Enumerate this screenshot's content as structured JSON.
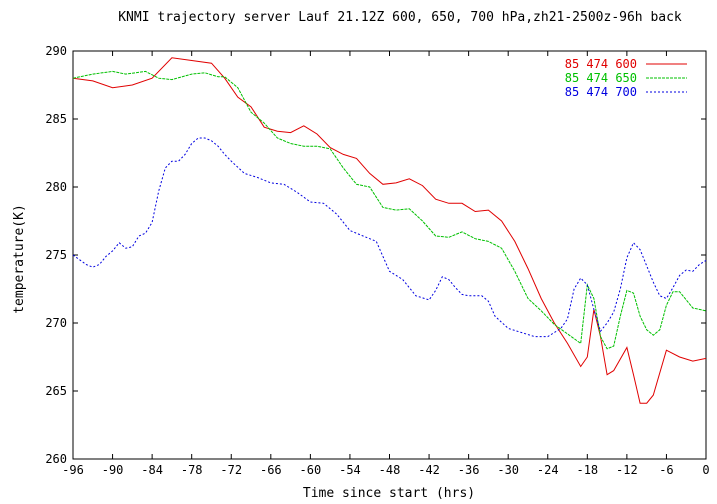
{
  "chart_data": {
    "type": "line",
    "title": "KNMI trajectory server Lauf 21.12Z 600, 650, 700 hPa,zh21-2500z-96h back",
    "xlabel": "Time since start (hrs)",
    "ylabel": "temperature(K)",
    "xlim": [
      -96,
      0
    ],
    "ylim": [
      260,
      290
    ],
    "xticks": [
      -96,
      -90,
      -84,
      -78,
      -72,
      -66,
      -60,
      -54,
      -48,
      -42,
      -36,
      -30,
      -24,
      -18,
      -12,
      -6,
      0
    ],
    "yticks": [
      260,
      265,
      270,
      275,
      280,
      285,
      290
    ],
    "grid": false,
    "legend_position": "top-right",
    "series": [
      {
        "name": "85 474 600",
        "color": "#e00000",
        "dash": "solid",
        "x": [
          -96,
          -93,
          -90,
          -87,
          -84,
          -81,
          -78,
          -75,
          -73,
          -71,
          -69,
          -67,
          -65,
          -63,
          -61,
          -59,
          -57,
          -55,
          -53,
          -51,
          -49,
          -47,
          -45,
          -43,
          -41,
          -39,
          -37,
          -35,
          -33,
          -31,
          -29,
          -27,
          -25,
          -23,
          -21,
          -19,
          -18,
          -17,
          -16,
          -15,
          -14,
          -12,
          -11,
          -10,
          -9,
          -8,
          -6,
          -4,
          -2,
          0
        ],
        "values": [
          288.0,
          287.8,
          287.3,
          287.5,
          288.0,
          289.5,
          289.3,
          289.1,
          288.0,
          286.6,
          285.9,
          284.4,
          284.1,
          284.0,
          284.5,
          283.9,
          282.9,
          282.4,
          282.1,
          281.0,
          280.2,
          280.3,
          280.6,
          280.1,
          279.1,
          278.8,
          278.8,
          278.2,
          278.3,
          277.5,
          276.0,
          274.0,
          271.8,
          270.0,
          268.5,
          266.8,
          267.5,
          271.0,
          269.0,
          266.2,
          266.5,
          268.2,
          266.2,
          264.1,
          264.1,
          264.7,
          268.0,
          267.5,
          267.2,
          267.4
        ]
      },
      {
        "name": "85 474 650",
        "color": "#00c000",
        "dash": "dashed",
        "x": [
          -96,
          -93,
          -90,
          -88,
          -85,
          -83,
          -81,
          -78,
          -76,
          -74,
          -73,
          -71,
          -69,
          -67,
          -65,
          -63,
          -61,
          -59,
          -57,
          -55,
          -53,
          -51,
          -49,
          -47,
          -45,
          -43,
          -41,
          -39,
          -37,
          -35,
          -33,
          -31,
          -29,
          -27,
          -25,
          -23,
          -21,
          -19,
          -18,
          -17,
          -16,
          -15,
          -14,
          -13,
          -12,
          -11,
          -10,
          -9,
          -8,
          -7,
          -6,
          -5,
          -4,
          -2,
          0
        ],
        "values": [
          288.0,
          288.3,
          288.5,
          288.3,
          288.5,
          288.0,
          287.9,
          288.3,
          288.4,
          288.1,
          288.1,
          287.3,
          285.5,
          284.7,
          283.6,
          283.2,
          283.0,
          283.0,
          282.8,
          281.4,
          280.2,
          280.0,
          278.5,
          278.3,
          278.4,
          277.5,
          276.4,
          276.3,
          276.7,
          276.2,
          276.0,
          275.5,
          273.8,
          271.8,
          270.9,
          269.9,
          269.2,
          268.5,
          272.8,
          271.8,
          269.0,
          268.1,
          268.3,
          270.5,
          272.4,
          272.2,
          270.5,
          269.5,
          269.1,
          269.5,
          271.3,
          272.3,
          272.3,
          271.1,
          270.9
        ]
      },
      {
        "name": "85 474 700",
        "color": "#0000e0",
        "dash": "dotted",
        "x": [
          -96,
          -94,
          -93,
          -92,
          -91,
          -90,
          -89,
          -88,
          -87,
          -86,
          -85,
          -84,
          -83,
          -82,
          -81,
          -80,
          -79,
          -78,
          -77,
          -76,
          -75,
          -74,
          -73,
          -72,
          -70,
          -68,
          -66,
          -64,
          -62,
          -60,
          -58,
          -56,
          -54,
          -52,
          -50,
          -48,
          -46,
          -44,
          -42,
          -41,
          -40,
          -39,
          -38,
          -37,
          -36,
          -35,
          -34,
          -33,
          -32,
          -30,
          -28,
          -26,
          -24,
          -22,
          -21,
          -20,
          -19,
          -18,
          -17,
          -16,
          -15,
          -14,
          -13,
          -12,
          -11,
          -10,
          -9,
          -8,
          -7,
          -6,
          -5,
          -4,
          -3,
          -2,
          -1,
          0
        ],
        "values": [
          275.0,
          274.3,
          274.1,
          274.3,
          274.9,
          275.3,
          275.9,
          275.5,
          275.6,
          276.4,
          276.6,
          277.4,
          279.7,
          281.4,
          281.9,
          281.9,
          282.4,
          283.2,
          283.6,
          283.6,
          283.4,
          283.0,
          282.4,
          281.9,
          281.0,
          280.7,
          280.3,
          280.2,
          279.6,
          278.9,
          278.8,
          278.0,
          276.8,
          276.4,
          276.0,
          273.8,
          273.2,
          272.0,
          271.7,
          272.4,
          273.4,
          273.2,
          272.6,
          272.1,
          272.0,
          272.0,
          272.0,
          271.6,
          270.5,
          269.6,
          269.3,
          269.0,
          269.0,
          269.6,
          270.3,
          272.5,
          273.3,
          272.8,
          271.0,
          269.4,
          270.0,
          270.8,
          272.5,
          274.8,
          275.9,
          275.4,
          274.2,
          273.0,
          272.0,
          271.8,
          272.6,
          273.5,
          273.9,
          273.8,
          274.3,
          274.6
        ]
      }
    ]
  }
}
